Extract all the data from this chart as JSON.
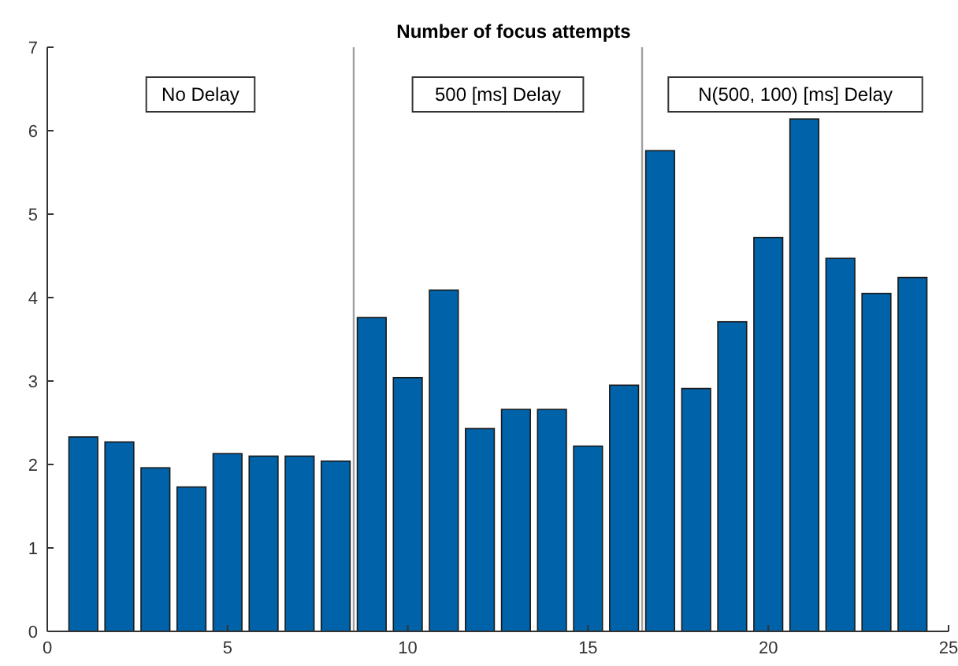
{
  "chart_data": {
    "type": "bar",
    "title": "Number of focus attempts",
    "x": [
      1,
      2,
      3,
      4,
      5,
      6,
      7,
      8,
      9,
      10,
      11,
      12,
      13,
      14,
      15,
      16,
      17,
      18,
      19,
      20,
      21,
      22,
      23,
      24
    ],
    "values": [
      2.33,
      2.27,
      1.96,
      1.73,
      2.13,
      2.1,
      2.1,
      2.04,
      3.76,
      3.04,
      4.09,
      2.43,
      2.66,
      2.66,
      2.22,
      2.95,
      5.76,
      2.91,
      3.71,
      4.72,
      6.14,
      4.47,
      4.05,
      4.24
    ],
    "color": "#0062a8",
    "xlim": [
      0,
      25
    ],
    "xticks": [
      0,
      5,
      10,
      15,
      20,
      25
    ],
    "ylim": [
      0,
      7
    ],
    "yticks": [
      0,
      1,
      2,
      3,
      4,
      5,
      6,
      7
    ],
    "ref_lines": [
      {
        "axis": "x",
        "value": 8.5,
        "color": "#a0a0a0"
      },
      {
        "axis": "x",
        "value": 16.5,
        "color": "#a0a0a0"
      }
    ],
    "annotations": [
      "No Delay",
      "500 [ms] Delay",
      "N(500, 100) [ms] Delay"
    ],
    "grid": false
  }
}
